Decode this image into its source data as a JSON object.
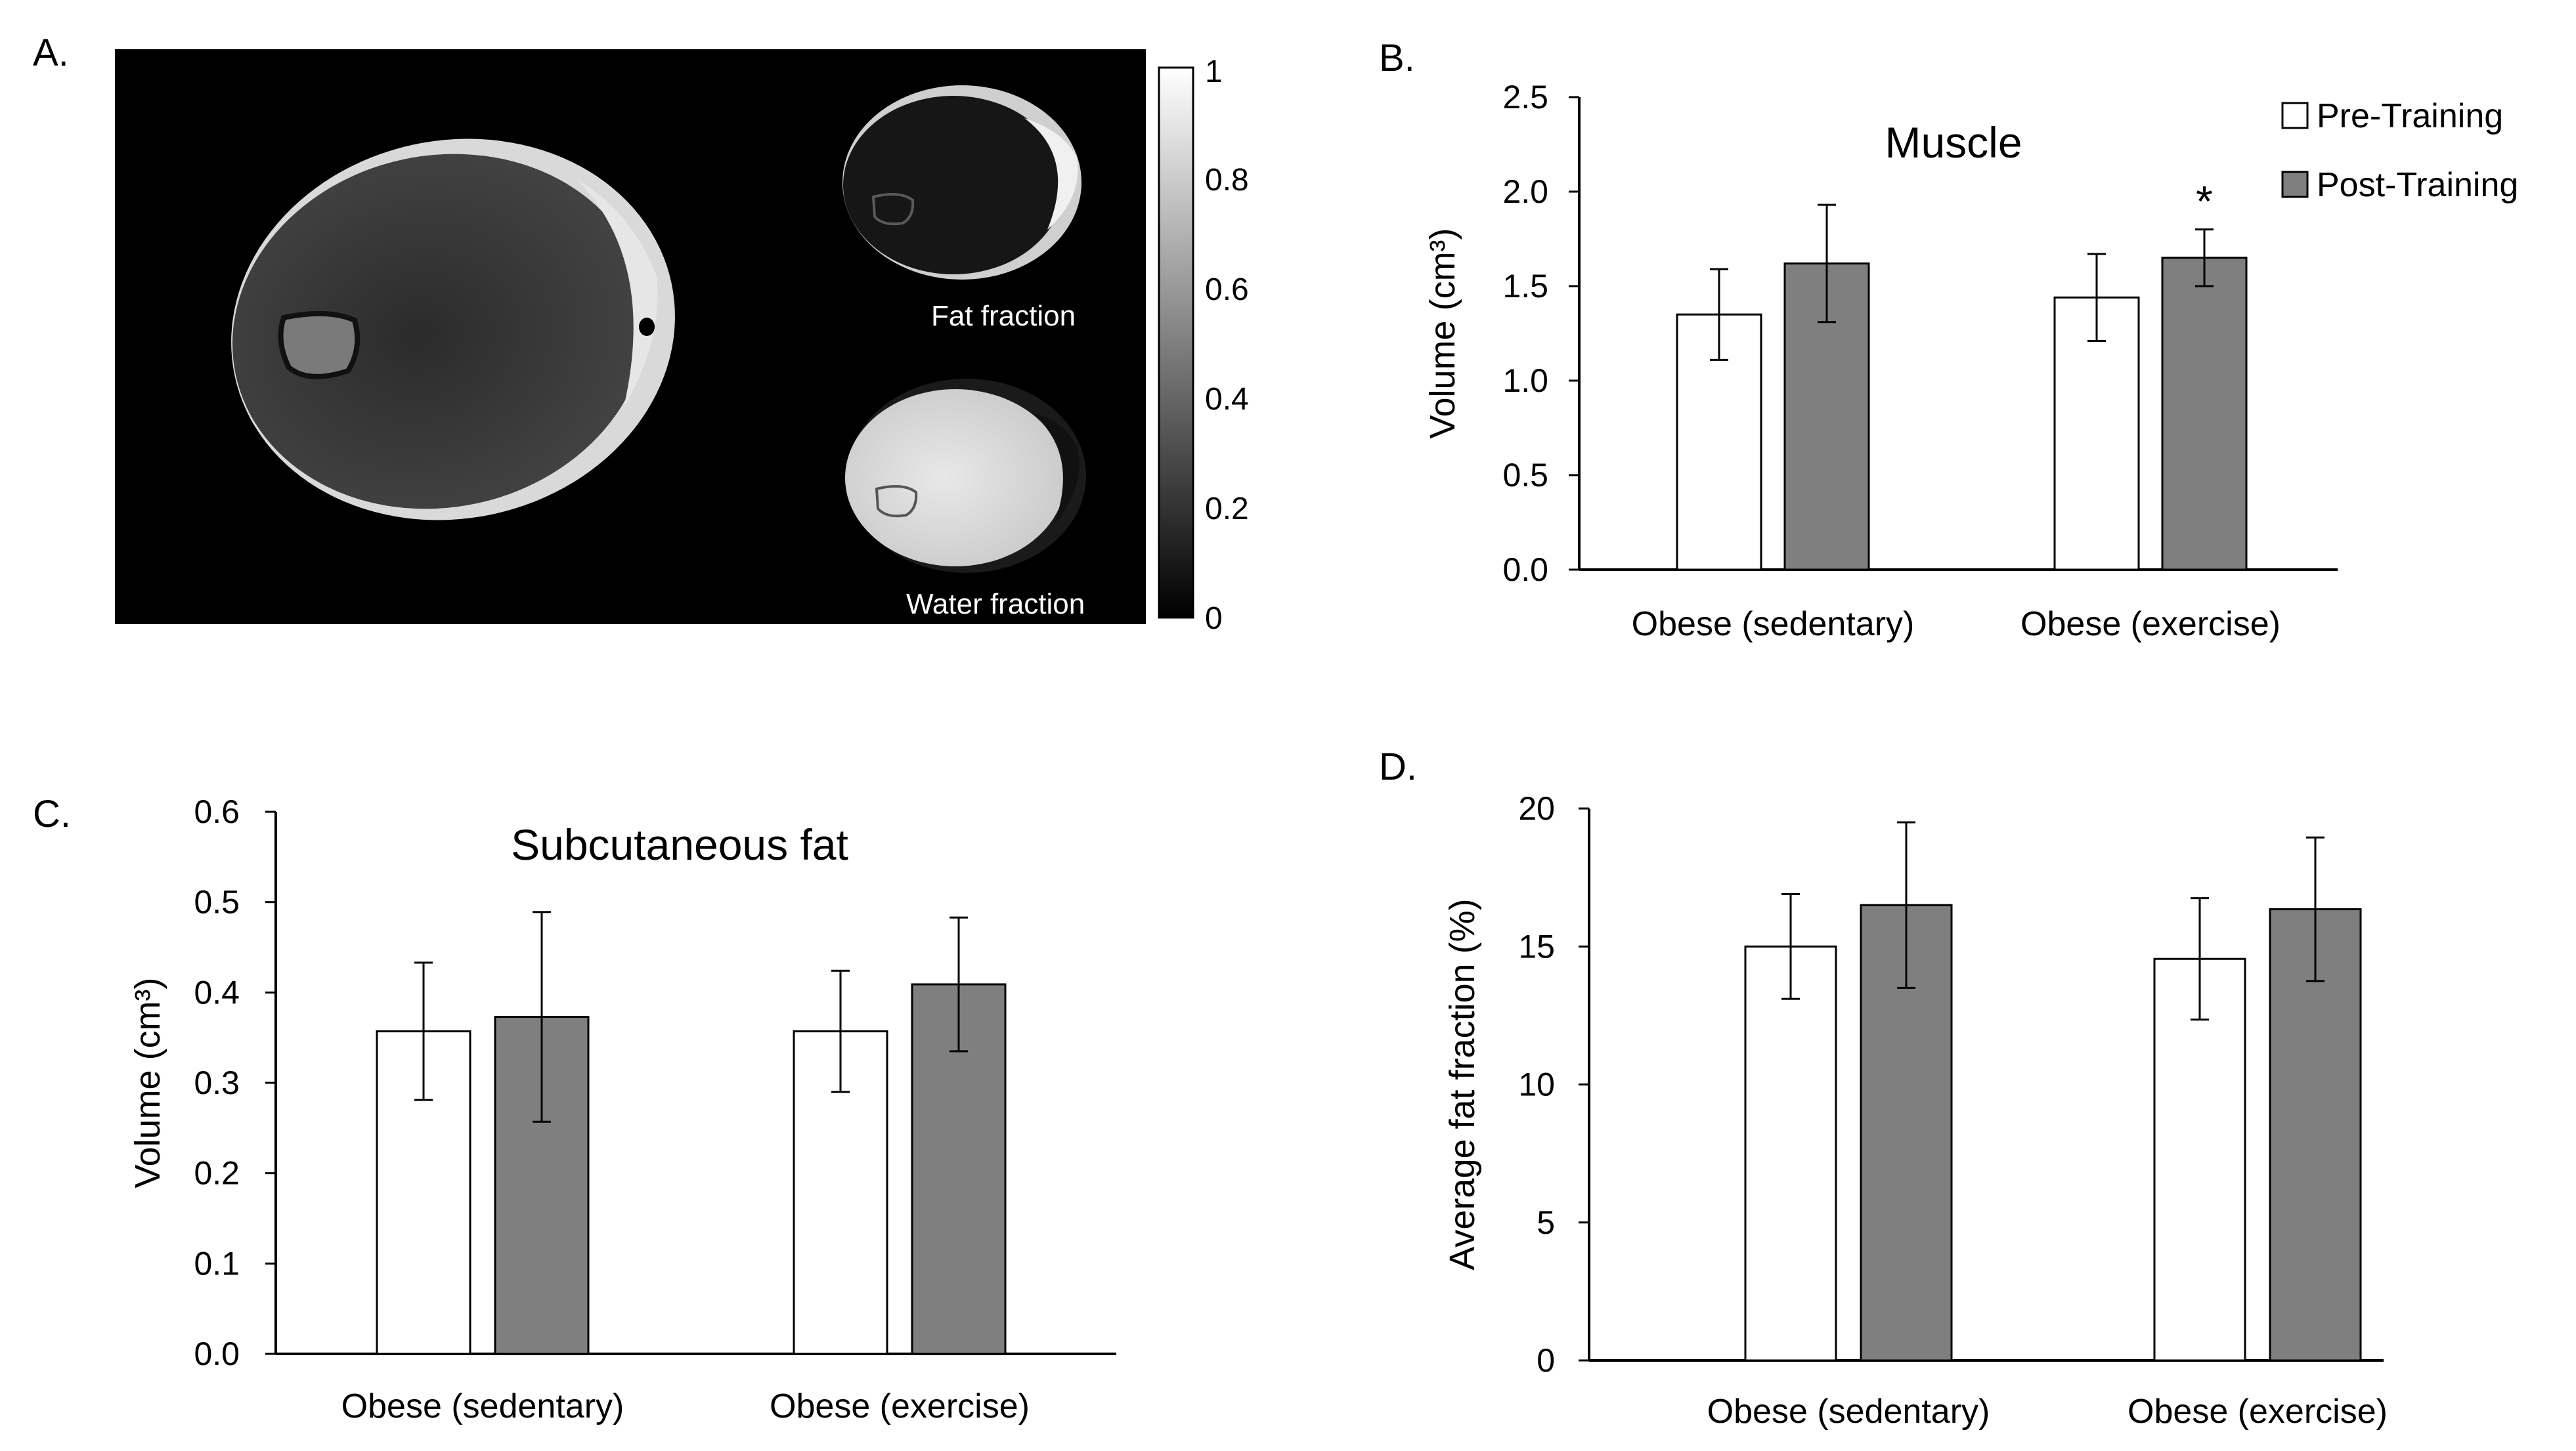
{
  "panel_labels": {
    "a": "A.",
    "b": "B.",
    "c": "C.",
    "d": "D."
  },
  "mri": {
    "fat_label": "Fat fraction",
    "water_label": "Water fraction",
    "colorbar_ticks": [
      "1",
      "0.8",
      "0.6",
      "0.4",
      "0.2",
      "0"
    ]
  },
  "legend": {
    "pre": "Pre-Training",
    "post": "Post-Training"
  },
  "colors": {
    "pre": "#ffffff",
    "post": "#7f7f7f",
    "axis": "#000000"
  },
  "chart_data": [
    {
      "id": "B",
      "type": "bar",
      "title": "Muscle",
      "ylabel": "Volume (cm³)",
      "xlabel": "",
      "ylim": [
        0,
        2.5
      ],
      "yticks": [
        "0.0",
        "0.5",
        "1.0",
        "1.5",
        "2.0",
        "2.5"
      ],
      "categories": [
        "Obese (sedentary)",
        "Obese (exercise)"
      ],
      "series": [
        {
          "name": "Pre-Training",
          "values": [
            1.35,
            1.44
          ],
          "errors": [
            0.24,
            0.23
          ]
        },
        {
          "name": "Post-Training",
          "values": [
            1.62,
            1.65
          ],
          "errors": [
            0.31,
            0.15
          ]
        }
      ],
      "annotations": [
        {
          "category": 1,
          "series": 1,
          "text": "*"
        }
      ],
      "legend_position": "top-right"
    },
    {
      "id": "C",
      "type": "bar",
      "title": "Subcutaneous fat",
      "ylabel": "Volume (cm³)",
      "xlabel": "",
      "ylim": [
        0,
        0.6
      ],
      "yticks": [
        "0.0",
        "0.1",
        "0.2",
        "0.3",
        "0.4",
        "0.5",
        "0.6"
      ],
      "categories": [
        "Obese (sedentary)",
        "Obese (exercise)"
      ],
      "series": [
        {
          "name": "Pre-Training",
          "values": [
            0.357,
            0.357
          ],
          "errors": [
            0.076,
            0.067
          ]
        },
        {
          "name": "Post-Training",
          "values": [
            0.373,
            0.409
          ],
          "errors": [
            0.116,
            0.074
          ]
        }
      ],
      "annotations": []
    },
    {
      "id": "D",
      "type": "bar",
      "title": "",
      "ylabel": "Average fat fraction (%)",
      "xlabel": "",
      "ylim": [
        0,
        20
      ],
      "yticks": [
        "0",
        "5",
        "10",
        "15",
        "20"
      ],
      "categories": [
        "Obese (sedentary)",
        "Obese (exercise)"
      ],
      "series": [
        {
          "name": "Pre-Training",
          "values": [
            15.0,
            14.55
          ],
          "errors": [
            1.9,
            2.2
          ]
        },
        {
          "name": "Post-Training",
          "values": [
            16.5,
            16.35
          ],
          "errors": [
            3.0,
            2.6
          ]
        }
      ],
      "annotations": []
    }
  ]
}
